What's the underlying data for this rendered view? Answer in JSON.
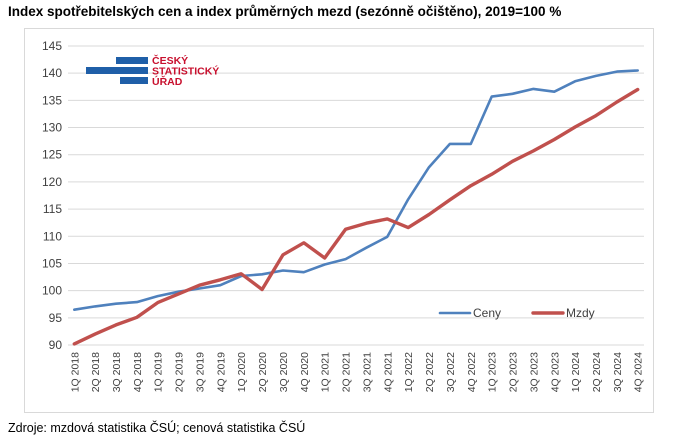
{
  "chart_data": {
    "type": "line",
    "title": "Index spotřebitelských cen a index průměrných mezd (sezónně očištěno), 2019=100 %",
    "categories": [
      "1Q 2018",
      "2Q 2018",
      "3Q 2018",
      "4Q 2018",
      "1Q 2019",
      "2Q 2019",
      "3Q 2019",
      "4Q 2019",
      "1Q 2020",
      "2Q 2020",
      "3Q 2020",
      "4Q 2020",
      "1Q 2021",
      "2Q 2021",
      "3Q 2021",
      "4Q 2021",
      "1Q 2022",
      "2Q 2022",
      "3Q 2022",
      "4Q 2022",
      "1Q 2023",
      "2Q 2023",
      "3Q 2023",
      "4Q 2023",
      "1Q 2024",
      "2Q 2024",
      "3Q 2024",
      "4Q 2024"
    ],
    "series": [
      {
        "name": "Ceny",
        "color": "#4f81bd",
        "values": [
          96.5,
          97.1,
          97.6,
          97.9,
          99.0,
          99.8,
          100.4,
          101.0,
          102.7,
          103.0,
          103.7,
          103.4,
          104.8,
          105.8,
          107.9,
          109.9,
          116.8,
          122.7,
          127.0,
          127.0,
          135.7,
          136.2,
          137.1,
          136.6,
          138.5,
          139.5,
          140.3,
          140.5
        ]
      },
      {
        "name": "Mzdy",
        "color": "#c0504d",
        "values": [
          90.2,
          92.0,
          93.7,
          95.1,
          97.8,
          99.4,
          101.0,
          102.0,
          103.1,
          100.2,
          106.6,
          108.8,
          106.0,
          111.3,
          112.4,
          113.2,
          111.6,
          114.0,
          116.7,
          119.3,
          121.4,
          123.8,
          125.7,
          127.8,
          130.1,
          132.2,
          134.7,
          137.0
        ]
      }
    ],
    "yticks": [
      90,
      95,
      100,
      105,
      110,
      115,
      120,
      125,
      130,
      135,
      140,
      145
    ],
    "ylim": [
      90,
      145
    ],
    "grid": "horizontal",
    "legend_position": "bottom-right",
    "legend": [
      "Ceny",
      "Mzdy"
    ]
  },
  "logo": {
    "lines": [
      "ČESKÝ",
      "STATISTICKÝ",
      "ÚŘAD"
    ],
    "bar_color": "#1f5fa8",
    "text_color": "#c8102e"
  },
  "source_note": "Zdroje: mzdová statistika ČSÚ; cenová statistika ČSÚ"
}
